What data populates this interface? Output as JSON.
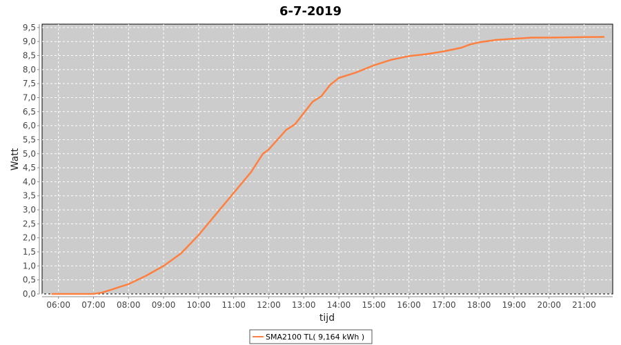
{
  "chart_data": {
    "type": "line",
    "title": "6-7-2019",
    "xlabel": "tijd",
    "ylabel": "Watt",
    "xlim": [
      "05:32",
      "21:49"
    ],
    "ylim": [
      0,
      9.62
    ],
    "x_ticks": [
      "06:00",
      "07:00",
      "08:00",
      "09:00",
      "10:00",
      "11:00",
      "12:00",
      "13:00",
      "14:00",
      "15:00",
      "16:00",
      "17:00",
      "18:00",
      "19:00",
      "20:00",
      "21:00"
    ],
    "y_ticks": [
      "0,0",
      "0,5",
      "1,0",
      "1,5",
      "2,0",
      "2,5",
      "3,0",
      "3,5",
      "4,0",
      "4,5",
      "5,0",
      "5,5",
      "6,0",
      "6,5",
      "7,0",
      "7,5",
      "8,0",
      "8,5",
      "9,0",
      "9,5"
    ],
    "grid": true,
    "background": "#cccccc",
    "legend_position": "bottom",
    "series": [
      {
        "name": "SMA2100 TL( 9,164 kWh )",
        "color": "#ff7f3f",
        "x": [
          "05:48",
          "06:30",
          "07:00",
          "07:15",
          "07:30",
          "07:45",
          "08:00",
          "08:30",
          "09:00",
          "09:30",
          "10:00",
          "10:30",
          "11:00",
          "11:30",
          "11:50",
          "12:00",
          "12:30",
          "12:45",
          "13:00",
          "13:15",
          "13:30",
          "13:45",
          "14:00",
          "14:30",
          "15:00",
          "15:30",
          "16:00",
          "16:30",
          "17:00",
          "17:30",
          "17:45",
          "18:00",
          "18:30",
          "19:00",
          "19:30",
          "20:00",
          "21:00",
          "21:35"
        ],
        "y": [
          0,
          0,
          0,
          0.05,
          0.15,
          0.25,
          0.35,
          0.65,
          1.0,
          1.45,
          2.1,
          2.85,
          3.6,
          4.35,
          5.0,
          5.15,
          5.85,
          6.05,
          6.45,
          6.85,
          7.05,
          7.45,
          7.7,
          7.9,
          8.15,
          8.35,
          8.48,
          8.55,
          8.65,
          8.78,
          8.9,
          8.97,
          9.06,
          9.1,
          9.14,
          9.14,
          9.16,
          9.164
        ]
      }
    ]
  }
}
